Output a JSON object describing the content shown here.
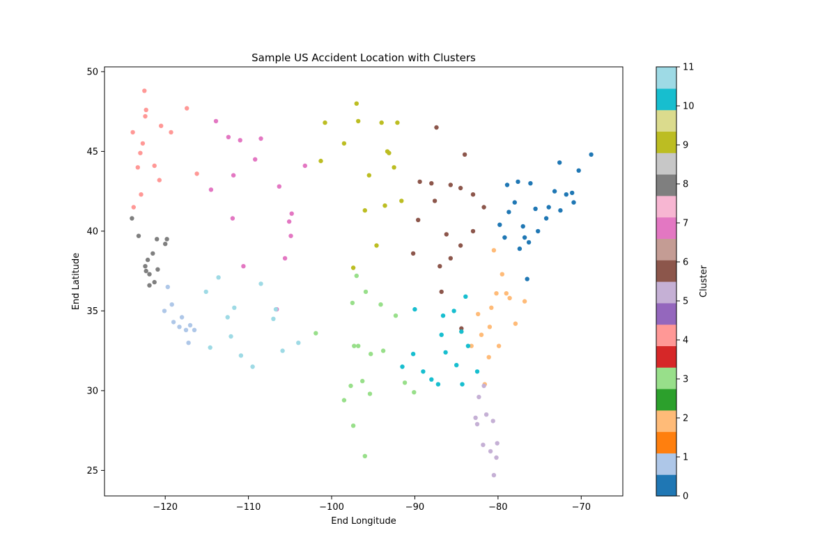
{
  "chart_data": {
    "type": "scatter",
    "title": "Sample US Accident Location with Clusters",
    "xlabel": "End Longitude",
    "ylabel": "End Latitude",
    "xlim": [
      -127.3,
      -65.0
    ],
    "ylim": [
      23.4,
      50.3
    ],
    "xticks": [
      -120,
      -110,
      -100,
      -90,
      -80,
      -70
    ],
    "yticks": [
      25,
      30,
      35,
      40,
      45,
      50
    ],
    "colorbar": {
      "label": "Cluster",
      "ticks": [
        0,
        1,
        2,
        3,
        4,
        5,
        6,
        7,
        8,
        9,
        10,
        11
      ],
      "range": [
        0,
        11
      ],
      "colormap": "tab20",
      "colors": [
        "#1f77b4",
        "#aec7e8",
        "#ff7f0e",
        "#ffbb78",
        "#2ca02c",
        "#98df8a",
        "#d62728",
        "#ff9896",
        "#9467bd",
        "#c5b0d5",
        "#8c564b",
        "#c49c94",
        "#e377c2",
        "#f7b6d2",
        "#7f7f7f",
        "#c7c7c7",
        "#bcbd22",
        "#dbdb8d",
        "#17becf",
        "#9edae5"
      ]
    },
    "clusters": [
      {
        "cluster": 0,
        "color": "#1f77b4",
        "points": [
          [
            -76.5,
            37
          ],
          [
            -77.4,
            38.9
          ],
          [
            -75.2,
            40
          ],
          [
            -74.2,
            40.8
          ],
          [
            -73.9,
            41.5
          ],
          [
            -73.2,
            42.5
          ],
          [
            -71.8,
            42.3
          ],
          [
            -71.1,
            42.4
          ],
          [
            -70.3,
            43.8
          ],
          [
            -72.6,
            44.3
          ],
          [
            -76.1,
            43.0
          ],
          [
            -77.6,
            43.1
          ],
          [
            -78.9,
            42.9
          ],
          [
            -78.7,
            41.2
          ],
          [
            -77.0,
            40.3
          ],
          [
            -75.5,
            41.4
          ],
          [
            -79.8,
            40.4
          ],
          [
            -76.3,
            39.3
          ],
          [
            -79.2,
            39.6
          ],
          [
            -68.8,
            44.8
          ],
          [
            -70.9,
            41.8
          ],
          [
            -72.5,
            41.3
          ],
          [
            -76.8,
            39.6
          ],
          [
            -78.0,
            41.8
          ]
        ]
      },
      {
        "cluster": 1,
        "color": "#aec7e8",
        "points": [
          [
            -118.3,
            34.0
          ],
          [
            -117.2,
            33.0
          ],
          [
            -117.5,
            33.8
          ],
          [
            -119.2,
            35.4
          ],
          [
            -119.7,
            36.5
          ],
          [
            -118.0,
            34.6
          ],
          [
            -117.0,
            34.1
          ],
          [
            -120.1,
            35.0
          ],
          [
            -116.5,
            33.8
          ],
          [
            -119.0,
            34.3
          ]
        ]
      },
      {
        "cluster": 2,
        "color": "#ffbb78",
        "points": [
          [
            -80.8,
            35.2
          ],
          [
            -78.6,
            35.8
          ],
          [
            -81.0,
            34.0
          ],
          [
            -79.9,
            32.8
          ],
          [
            -81.1,
            32.1
          ],
          [
            -84.4,
            33.7
          ],
          [
            -82.4,
            34.8
          ],
          [
            -79.0,
            36.1
          ],
          [
            -77.9,
            34.2
          ],
          [
            -80.2,
            36.1
          ],
          [
            -83.2,
            32.8
          ],
          [
            -82.0,
            33.5
          ],
          [
            -79.5,
            37.3
          ],
          [
            -81.6,
            30.4
          ],
          [
            -80.5,
            38.8
          ],
          [
            -76.8,
            35.6
          ]
        ]
      },
      {
        "cluster": 3,
        "color": "#98df8a",
        "points": [
          [
            -97.3,
            32.8
          ],
          [
            -96.8,
            32.8
          ],
          [
            -95.4,
            29.8
          ],
          [
            -98.5,
            29.4
          ],
          [
            -97.7,
            30.3
          ],
          [
            -92.3,
            34.7
          ],
          [
            -90.1,
            29.9
          ],
          [
            -97.5,
            35.5
          ],
          [
            -95.9,
            36.2
          ],
          [
            -94.1,
            35.4
          ],
          [
            -96.3,
            30.6
          ],
          [
            -91.2,
            30.5
          ],
          [
            -97.4,
            27.8
          ],
          [
            -101.9,
            33.6
          ],
          [
            -95.3,
            32.3
          ],
          [
            -93.8,
            32.5
          ],
          [
            -97.0,
            37.2
          ],
          [
            -96.0,
            25.9
          ]
        ]
      },
      {
        "cluster": 4,
        "color": "#ff9896",
        "points": [
          [
            -122.7,
            45.5
          ],
          [
            -122.3,
            47.6
          ],
          [
            -123.0,
            44.9
          ],
          [
            -122.4,
            47.2
          ],
          [
            -123.3,
            44.0
          ],
          [
            -122.9,
            42.3
          ],
          [
            -117.4,
            47.7
          ],
          [
            -121.3,
            44.1
          ],
          [
            -120.5,
            46.6
          ],
          [
            -119.3,
            46.2
          ],
          [
            -123.9,
            46.2
          ],
          [
            -122.5,
            48.8
          ],
          [
            -116.2,
            43.6
          ],
          [
            -123.8,
            41.5
          ],
          [
            -120.7,
            43.2
          ]
        ]
      },
      {
        "cluster": 5,
        "color": "#c5b0d5",
        "points": [
          [
            -81.4,
            28.5
          ],
          [
            -82.5,
            27.9
          ],
          [
            -80.2,
            25.8
          ],
          [
            -80.1,
            26.7
          ],
          [
            -81.7,
            30.3
          ],
          [
            -82.3,
            29.6
          ],
          [
            -81.8,
            26.6
          ],
          [
            -80.6,
            28.1
          ],
          [
            -80.5,
            24.7
          ],
          [
            -82.7,
            28.3
          ],
          [
            -80.9,
            26.2
          ]
        ]
      },
      {
        "cluster": 6,
        "color": "#8c564b",
        "points": [
          [
            -87.6,
            41.9
          ],
          [
            -86.2,
            39.8
          ],
          [
            -84.5,
            39.1
          ],
          [
            -83.0,
            40.0
          ],
          [
            -83.0,
            42.3
          ],
          [
            -85.7,
            38.3
          ],
          [
            -84.5,
            42.7
          ],
          [
            -85.7,
            42.9
          ],
          [
            -88.0,
            43.0
          ],
          [
            -84.4,
            33.9
          ],
          [
            -89.6,
            40.7
          ],
          [
            -86.8,
            36.2
          ],
          [
            -84.0,
            44.8
          ],
          [
            -87.4,
            46.5
          ],
          [
            -90.2,
            38.6
          ],
          [
            -81.7,
            41.5
          ],
          [
            -89.4,
            43.1
          ],
          [
            -87.0,
            37.8
          ]
        ]
      },
      {
        "cluster": 7,
        "color": "#e377c2",
        "points": [
          [
            -111.9,
            40.8
          ],
          [
            -104.9,
            39.7
          ],
          [
            -105.1,
            40.6
          ],
          [
            -106.6,
            35.1
          ],
          [
            -111.8,
            43.5
          ],
          [
            -112.4,
            45.9
          ],
          [
            -113.9,
            46.9
          ],
          [
            -108.5,
            45.8
          ],
          [
            -104.8,
            41.1
          ],
          [
            -105.6,
            38.3
          ],
          [
            -110.6,
            37.8
          ],
          [
            -106.3,
            42.8
          ],
          [
            -114.5,
            42.6
          ],
          [
            -109.2,
            44.5
          ],
          [
            -103.2,
            44.1
          ],
          [
            -111.0,
            45.7
          ]
        ]
      },
      {
        "cluster": 8,
        "color": "#7f7f7f",
        "points": [
          [
            -122.4,
            37.8
          ],
          [
            -121.9,
            37.3
          ],
          [
            -121.5,
            38.6
          ],
          [
            -122.3,
            37.5
          ],
          [
            -120.9,
            37.6
          ],
          [
            -122.1,
            38.2
          ],
          [
            -123.2,
            39.7
          ],
          [
            -121.3,
            36.8
          ],
          [
            -120.0,
            39.2
          ],
          [
            -124.0,
            40.8
          ],
          [
            -121.0,
            39.5
          ],
          [
            -121.9,
            36.6
          ],
          [
            -119.8,
            39.5
          ]
        ]
      },
      {
        "cluster": 9,
        "color": "#bcbd22",
        "points": [
          [
            -93.3,
            45.0
          ],
          [
            -93.1,
            44.9
          ],
          [
            -94.0,
            46.8
          ],
          [
            -96.8,
            46.9
          ],
          [
            -94.6,
            39.1
          ],
          [
            -93.6,
            41.6
          ],
          [
            -96.0,
            41.3
          ],
          [
            -98.5,
            45.5
          ],
          [
            -97.0,
            48.0
          ],
          [
            -92.1,
            46.8
          ],
          [
            -91.6,
            41.9
          ],
          [
            -95.5,
            43.5
          ],
          [
            -97.4,
            37.7
          ],
          [
            -100.8,
            46.8
          ],
          [
            -101.3,
            44.4
          ],
          [
            -92.5,
            44.0
          ]
        ]
      },
      {
        "cluster": 10,
        "color": "#17becf",
        "points": [
          [
            -86.8,
            33.5
          ],
          [
            -84.4,
            33.7
          ],
          [
            -90.0,
            35.1
          ],
          [
            -86.3,
            32.4
          ],
          [
            -88.0,
            30.7
          ],
          [
            -90.2,
            32.3
          ],
          [
            -85.3,
            35.0
          ],
          [
            -83.9,
            35.9
          ],
          [
            -84.3,
            30.4
          ],
          [
            -86.6,
            34.7
          ],
          [
            -89.0,
            31.2
          ],
          [
            -87.2,
            30.4
          ],
          [
            -85.0,
            31.6
          ],
          [
            -82.5,
            31.2
          ],
          [
            -91.5,
            31.5
          ],
          [
            -83.6,
            32.8
          ]
        ]
      },
      {
        "cluster": 11,
        "color": "#9edae5",
        "points": [
          [
            -112.1,
            33.4
          ],
          [
            -110.9,
            32.2
          ],
          [
            -115.1,
            36.2
          ],
          [
            -111.7,
            35.2
          ],
          [
            -106.7,
            35.1
          ],
          [
            -108.5,
            36.7
          ],
          [
            -104.0,
            33.0
          ],
          [
            -113.6,
            37.1
          ],
          [
            -109.5,
            31.5
          ],
          [
            -114.6,
            32.7
          ],
          [
            -105.9,
            32.5
          ],
          [
            -107.0,
            34.5
          ],
          [
            -112.5,
            34.6
          ]
        ]
      }
    ]
  }
}
